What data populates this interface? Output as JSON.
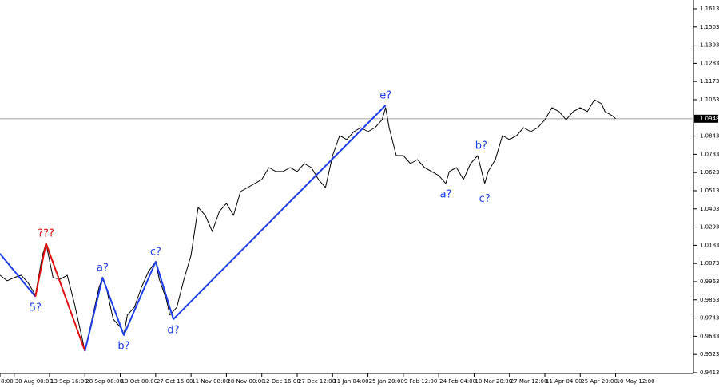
{
  "chart_data": {
    "type": "line",
    "series": [
      {
        "color": "#000000",
        "x": [
          0,
          2,
          4,
          6,
          8,
          10,
          12,
          13,
          15,
          17,
          19,
          21,
          23,
          24,
          26,
          28,
          29,
          30,
          32,
          34,
          35,
          36,
          38,
          40,
          42,
          44,
          45,
          47,
          48,
          50,
          52,
          54,
          56,
          58,
          60,
          62,
          64,
          66,
          68,
          70,
          72,
          74,
          76,
          78,
          80,
          82,
          84,
          86,
          88,
          90,
          92,
          94,
          96,
          98,
          100,
          102,
          104,
          106,
          108,
          109,
          110,
          112,
          114,
          116,
          118,
          120,
          122,
          124,
          126,
          127,
          129,
          131,
          133,
          135,
          137,
          138,
          140,
          142,
          144,
          146,
          148,
          150,
          152,
          154,
          156,
          158,
          160,
          162,
          164,
          166,
          168,
          170,
          171,
          173,
          174
        ],
        "values": [
          1.0002,
          0.9968,
          0.9987,
          1.0002,
          0.9954,
          0.9881,
          1.0122,
          1.0195,
          0.9987,
          0.9978,
          1.0002,
          0.9833,
          0.964,
          0.9544,
          0.9736,
          0.9929,
          0.9987,
          0.9929,
          0.9736,
          0.9688,
          0.964,
          0.9761,
          0.9809,
          0.9929,
          1.0026,
          1.0084,
          0.9978,
          0.9857,
          0.9761,
          0.9809,
          0.9978,
          1.0122,
          1.0412,
          1.0364,
          1.0267,
          1.0388,
          1.0436,
          1.0364,
          1.0508,
          1.0532,
          1.0557,
          1.0581,
          1.0653,
          1.0629,
          1.0629,
          1.0653,
          1.0629,
          1.0677,
          1.0653,
          1.0581,
          1.0532,
          1.0725,
          1.0846,
          1.0822,
          1.087,
          1.0894,
          1.087,
          1.0894,
          1.0942,
          1.1015,
          1.0894,
          1.0725,
          1.0725,
          1.0677,
          1.0701,
          1.0653,
          1.0629,
          1.0605,
          1.0557,
          1.0629,
          1.0653,
          1.0581,
          1.0677,
          1.0725,
          1.0557,
          1.0629,
          1.0701,
          1.0846,
          1.0822,
          1.0846,
          1.0894,
          1.087,
          1.0894,
          1.0942,
          1.1015,
          1.0991,
          1.0942,
          1.0991,
          1.1015,
          1.0991,
          1.1063,
          1.1039,
          1.0991,
          1.0967,
          1.0948
        ]
      }
    ],
    "wave_segments": [
      {
        "color": "#1f3fe6",
        "x": [
          0,
          10
        ],
        "values": [
          1.0132,
          0.9872
        ]
      },
      {
        "color": "#e01010",
        "x": [
          10,
          13,
          24
        ],
        "values": [
          0.9872,
          1.0195,
          0.9544
        ]
      },
      {
        "color": "#1f3fe6",
        "x": [
          24,
          29,
          35,
          44,
          49,
          109
        ],
        "values": [
          0.9544,
          0.9987,
          0.964,
          1.0084,
          0.9736,
          1.1029
        ]
      }
    ],
    "annotations": [
      {
        "text": "5?",
        "x": 10,
        "y": 0.9872,
        "position": "below",
        "color": "#1f3fe6"
      },
      {
        "text": "???",
        "x": 13,
        "y": 1.0195,
        "position": "above",
        "color": "#e01010"
      },
      {
        "text": "a?",
        "x": 29,
        "y": 0.9987,
        "position": "above",
        "color": "#1f3fe6"
      },
      {
        "text": "b?",
        "x": 35,
        "y": 0.964,
        "position": "below",
        "color": "#1f3fe6"
      },
      {
        "text": "c?",
        "x": 44,
        "y": 1.0084,
        "position": "above",
        "color": "#1f3fe6"
      },
      {
        "text": "d?",
        "x": 49,
        "y": 0.9736,
        "position": "below",
        "color": "#1f3fe6"
      },
      {
        "text": "e?",
        "x": 109,
        "y": 1.1029,
        "position": "above",
        "color": "#1f3fe6"
      },
      {
        "text": "a?",
        "x": 126,
        "y": 1.0557,
        "position": "below",
        "color": "#1f3fe6"
      },
      {
        "text": "b?",
        "x": 136,
        "y": 1.0725,
        "position": "above",
        "color": "#1f3fe6"
      },
      {
        "text": "c?",
        "x": 137,
        "y": 1.0529,
        "position": "below",
        "color": "#1f3fe6"
      }
    ],
    "current_price": 1.0948,
    "xlim": [
      0,
      196
    ],
    "ylim": [
      0.9408,
      1.1666
    ],
    "xticks": [
      {
        "value": 0,
        "label": "8:00"
      },
      {
        "value": 4,
        "label": "30 Aug 00:00"
      },
      {
        "value": 14,
        "label": "13 Sep 16:00"
      },
      {
        "value": 24,
        "label": "28 Sep 08:00"
      },
      {
        "value": 34,
        "label": "13 Oct 00:00"
      },
      {
        "value": 44,
        "label": "27 Oct 16:00"
      },
      {
        "value": 54,
        "label": "11 Nov 08:00"
      },
      {
        "value": 64,
        "label": "28 Nov 00:00"
      },
      {
        "value": 74,
        "label": "12 Dec 16:00"
      },
      {
        "value": 84,
        "label": "27 Dec 12:00"
      },
      {
        "value": 94,
        "label": "11 Jan 04:00"
      },
      {
        "value": 104,
        "label": "25 Jan 20:00"
      },
      {
        "value": 114,
        "label": "9 Feb 12:00"
      },
      {
        "value": 124,
        "label": "24 Feb 04:00"
      },
      {
        "value": 134,
        "label": "10 Mar 20:00"
      },
      {
        "value": 144,
        "label": "27 Mar 12:00"
      },
      {
        "value": 154,
        "label": "11 Apr 04:00"
      },
      {
        "value": 164,
        "label": "25 Apr 20:00"
      },
      {
        "value": 174,
        "label": "10 May 12:00"
      }
    ],
    "yticks": [
      1.1613,
      1.1503,
      1.1393,
      1.1283,
      1.1173,
      1.1063,
      1.0843,
      1.0733,
      1.0623,
      1.0513,
      1.0403,
      1.0293,
      1.0183,
      1.0073,
      0.9963,
      0.9853,
      0.9743,
      0.9633,
      0.9523,
      0.9413
    ]
  }
}
